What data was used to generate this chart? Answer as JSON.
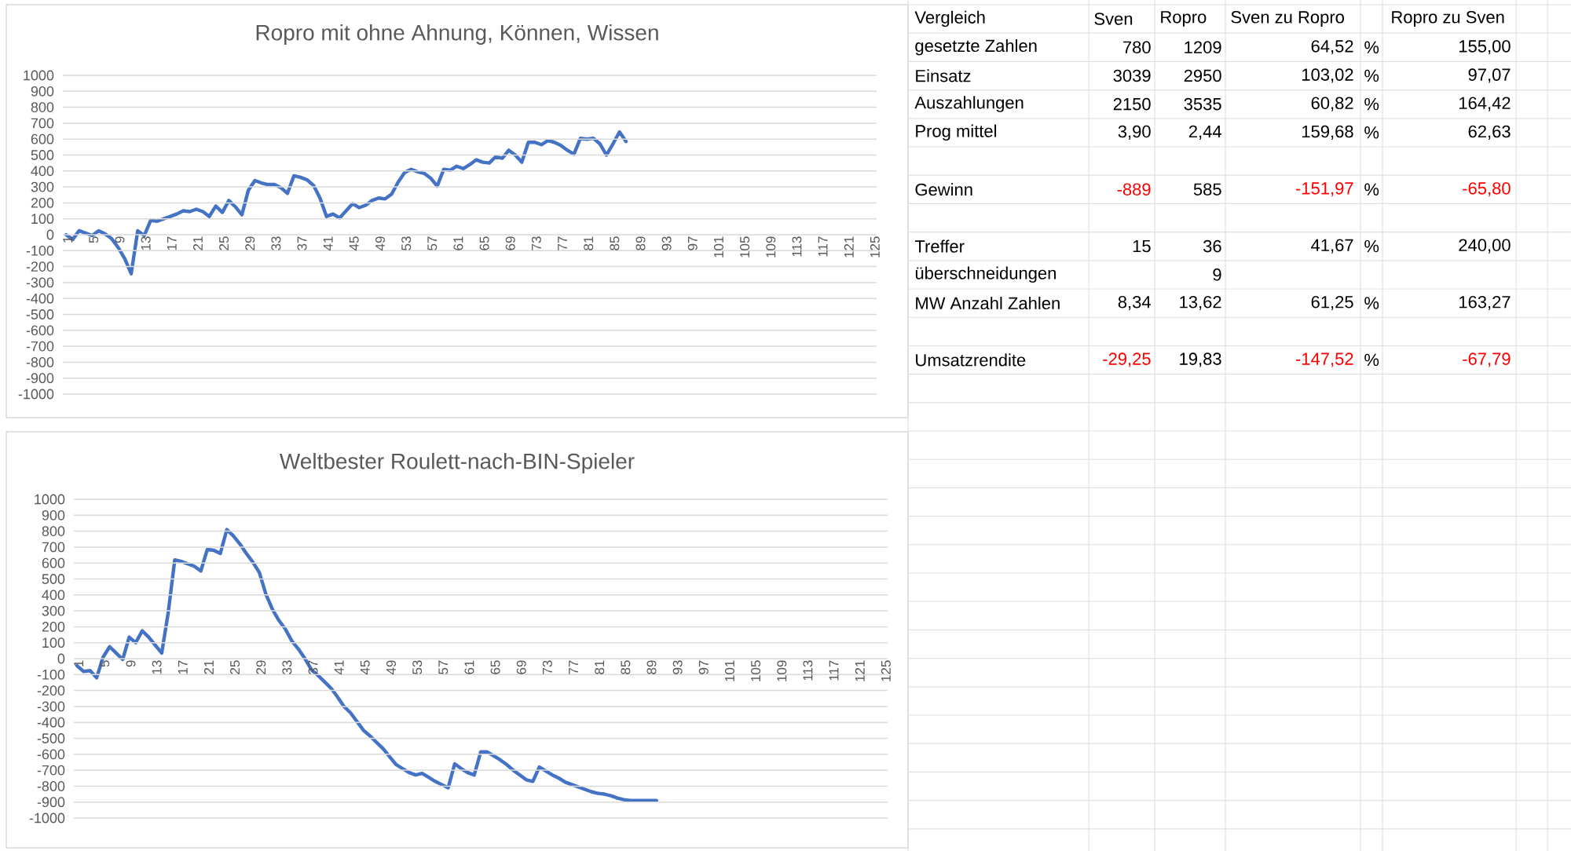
{
  "chart_data": [
    {
      "type": "line",
      "title": "Ropro mit ohne Ahnung, Können, Wissen",
      "grid": "y",
      "categories": [
        "1",
        null,
        null,
        null,
        "5",
        null,
        null,
        null,
        "9",
        null,
        null,
        null,
        "13",
        null,
        null,
        null,
        "17",
        null,
        null,
        null,
        "21",
        null,
        null,
        null,
        "25",
        null,
        null,
        null,
        "29",
        null,
        null,
        null,
        "33",
        null,
        null,
        null,
        "37",
        null,
        null,
        null,
        "41",
        null,
        null,
        null,
        "45",
        null,
        null,
        null,
        "49",
        null,
        null,
        null,
        "53",
        null,
        null,
        null,
        "57",
        null,
        null,
        null,
        "61",
        null,
        null,
        null,
        "65",
        null,
        null,
        null,
        "69",
        null,
        null,
        null,
        "73",
        null,
        null,
        null,
        "77",
        null,
        null,
        null,
        "81",
        null,
        null,
        null,
        "85",
        null,
        null,
        null,
        "89",
        null,
        null,
        null,
        "93",
        null,
        null,
        null,
        "97",
        null,
        null,
        null,
        "101",
        null,
        null,
        null,
        "105",
        null,
        null,
        null,
        "109",
        null,
        null,
        null,
        "113",
        null,
        null,
        null,
        "117",
        null,
        null,
        null,
        "121",
        null,
        null,
        null,
        "125"
      ],
      "ylim": [
        -1000,
        1000
      ],
      "yticks": [
        -1000,
        -900,
        -800,
        -700,
        -600,
        -500,
        -400,
        -300,
        -200,
        -100,
        0,
        100,
        200,
        300,
        400,
        500,
        600,
        700,
        800,
        900,
        1000
      ],
      "series": [
        {
          "color": "#4472c4",
          "values": [
            0,
            -30,
            25,
            10,
            -5,
            25,
            5,
            -25,
            -80,
            -150,
            -245,
            25,
            -5,
            90,
            85,
            100,
            115,
            130,
            150,
            145,
            160,
            145,
            115,
            180,
            140,
            215,
            175,
            125,
            280,
            340,
            325,
            315,
            315,
            295,
            260,
            370,
            360,
            345,
            310,
            230,
            115,
            130,
            105,
            150,
            195,
            170,
            185,
            215,
            230,
            225,
            255,
            330,
            390,
            410,
            395,
            385,
            355,
            305,
            410,
            405,
            430,
            415,
            440,
            470,
            455,
            450,
            490,
            480,
            530,
            500,
            455,
            580,
            580,
            565,
            590,
            580,
            560,
            530,
            505,
            605,
            600,
            605,
            570,
            500,
            570,
            645,
            585,
            null,
            null,
            null,
            null,
            null,
            null,
            null,
            null,
            null,
            null,
            null,
            null,
            null,
            null,
            null,
            null,
            null,
            null,
            null,
            null,
            null,
            null,
            null,
            null,
            null,
            null,
            null,
            null,
            null,
            null,
            null,
            null,
            null,
            null,
            null,
            null,
            null,
            null
          ]
        }
      ]
    },
    {
      "type": "line",
      "title": "Weltbester Roulett-nach-BIN-Spieler",
      "grid": "y",
      "categories": [
        "1",
        null,
        null,
        null,
        "5",
        null,
        null,
        null,
        "9",
        null,
        null,
        null,
        "13",
        null,
        null,
        null,
        "17",
        null,
        null,
        null,
        "21",
        null,
        null,
        null,
        "25",
        null,
        null,
        null,
        "29",
        null,
        null,
        null,
        "33",
        null,
        null,
        null,
        "37",
        null,
        null,
        null,
        "41",
        null,
        null,
        null,
        "45",
        null,
        null,
        null,
        "49",
        null,
        null,
        null,
        "53",
        null,
        null,
        null,
        "57",
        null,
        null,
        null,
        "61",
        null,
        null,
        null,
        "65",
        null,
        null,
        null,
        "69",
        null,
        null,
        null,
        "73",
        null,
        null,
        null,
        "77",
        null,
        null,
        null,
        "81",
        null,
        null,
        null,
        "85",
        null,
        null,
        null,
        "89",
        null,
        null,
        null,
        "93",
        null,
        null,
        null,
        "97",
        null,
        null,
        null,
        "101",
        null,
        null,
        null,
        "105",
        null,
        null,
        null,
        "109",
        null,
        null,
        null,
        "113",
        null,
        null,
        null,
        "117",
        null,
        null,
        null,
        "121",
        null,
        null,
        null,
        "125"
      ],
      "ylim": [
        -1000,
        1000
      ],
      "yticks": [
        -1000,
        -900,
        -800,
        -700,
        -600,
        -500,
        -400,
        -300,
        -200,
        -100,
        0,
        100,
        200,
        300,
        400,
        500,
        600,
        700,
        800,
        900,
        1000
      ],
      "series": [
        {
          "color": "#4472c4",
          "values": [
            -45,
            -80,
            -75,
            -120,
            10,
            75,
            35,
            -5,
            135,
            100,
            175,
            135,
            85,
            35,
            290,
            620,
            610,
            595,
            580,
            550,
            685,
            680,
            660,
            810,
            770,
            720,
            660,
            605,
            540,
            405,
            310,
            240,
            185,
            110,
            60,
            0,
            -70,
            -105,
            -145,
            -185,
            -240,
            -300,
            -340,
            -395,
            -450,
            -485,
            -525,
            -565,
            -615,
            -665,
            -690,
            -715,
            -730,
            -720,
            -745,
            -770,
            -790,
            -810,
            -660,
            -690,
            -715,
            -730,
            -585,
            -585,
            -610,
            -635,
            -665,
            -700,
            -730,
            -760,
            -770,
            -680,
            -705,
            -730,
            -750,
            -775,
            -790,
            -805,
            -820,
            -835,
            -845,
            -850,
            -860,
            -875,
            -885,
            -890,
            -890,
            -890,
            -890,
            -890,
            null,
            null,
            null,
            null,
            null,
            null,
            null,
            null,
            null,
            null,
            null,
            null,
            null,
            null,
            null,
            null,
            null,
            null,
            null,
            null,
            null,
            null,
            null,
            null,
            null,
            null,
            null,
            null,
            null,
            null,
            null,
            null,
            null,
            null,
            null
          ]
        }
      ]
    },
    {
      "type": "other",
      "title": "Vergleich",
      "annotations": [
        "%",
        "%",
        "%",
        "%",
        "%",
        "%",
        "%",
        "%"
      ],
      "categories": [
        "gesetzte Zahlen",
        "Einsatz",
        "Auszahlungen",
        "Prog mittel",
        null,
        "Gewinn",
        null,
        "Treffer",
        "überschneidungen",
        "MW Anzahl Zahlen",
        null,
        "Umsatzrendite"
      ],
      "series": [
        {
          "name": "Sven",
          "values": [
            780,
            3039,
            2150,
            3.9,
            null,
            -889,
            null,
            15,
            null,
            8.34,
            null,
            -29.25
          ],
          "value_labels": [
            "780",
            "3039",
            "2150",
            "3,90",
            null,
            "-889",
            null,
            "15",
            null,
            "8,34",
            null,
            "-29,25"
          ],
          "colors": [
            "#000000",
            "#000000",
            "#000000",
            "#000000",
            null,
            "#ff0000",
            null,
            "#000000",
            null,
            "#000000",
            null,
            "#ff0000"
          ]
        },
        {
          "name": "Ropro",
          "values": [
            1209,
            2950,
            3535,
            2.44,
            null,
            585,
            null,
            36,
            9,
            13.62,
            null,
            19.83
          ],
          "value_labels": [
            "1209",
            "2950",
            "3535",
            "2,44",
            null,
            "585",
            null,
            "36",
            "9",
            "13,62",
            null,
            "19,83"
          ],
          "colors": [
            "#000000",
            "#000000",
            "#000000",
            "#000000",
            null,
            "#000000",
            null,
            "#000000",
            "#000000",
            "#000000",
            null,
            "#000000"
          ]
        },
        {
          "name": "Sven zu Ropro",
          "values": [
            64.52,
            103.02,
            60.82,
            159.68,
            null,
            -151.97,
            null,
            41.67,
            null,
            61.25,
            null,
            -147.52
          ],
          "value_labels": [
            "64,52",
            "103,02",
            "60,82",
            "159,68",
            null,
            "-151,97",
            null,
            "41,67",
            null,
            "61,25",
            null,
            "-147,52"
          ],
          "colors": [
            "#000000",
            "#000000",
            "#000000",
            "#000000",
            null,
            "#ff0000",
            null,
            "#000000",
            null,
            "#000000",
            null,
            "#ff0000"
          ]
        },
        {
          "name": "Ropro zu Sven",
          "values": [
            155.0,
            97.07,
            164.42,
            62.63,
            null,
            -65.8,
            null,
            240.0,
            null,
            163.27,
            null,
            -67.79
          ],
          "value_labels": [
            "155,00",
            "97,07",
            "164,42",
            "62,63",
            null,
            "-65,80",
            null,
            "240,00",
            null,
            "163,27",
            null,
            "-67,79"
          ],
          "colors": [
            "#000000",
            "#000000",
            "#000000",
            "#000000",
            null,
            "#ff0000",
            null,
            "#000000",
            null,
            "#000000",
            null,
            "#ff0000"
          ]
        }
      ]
    }
  ]
}
